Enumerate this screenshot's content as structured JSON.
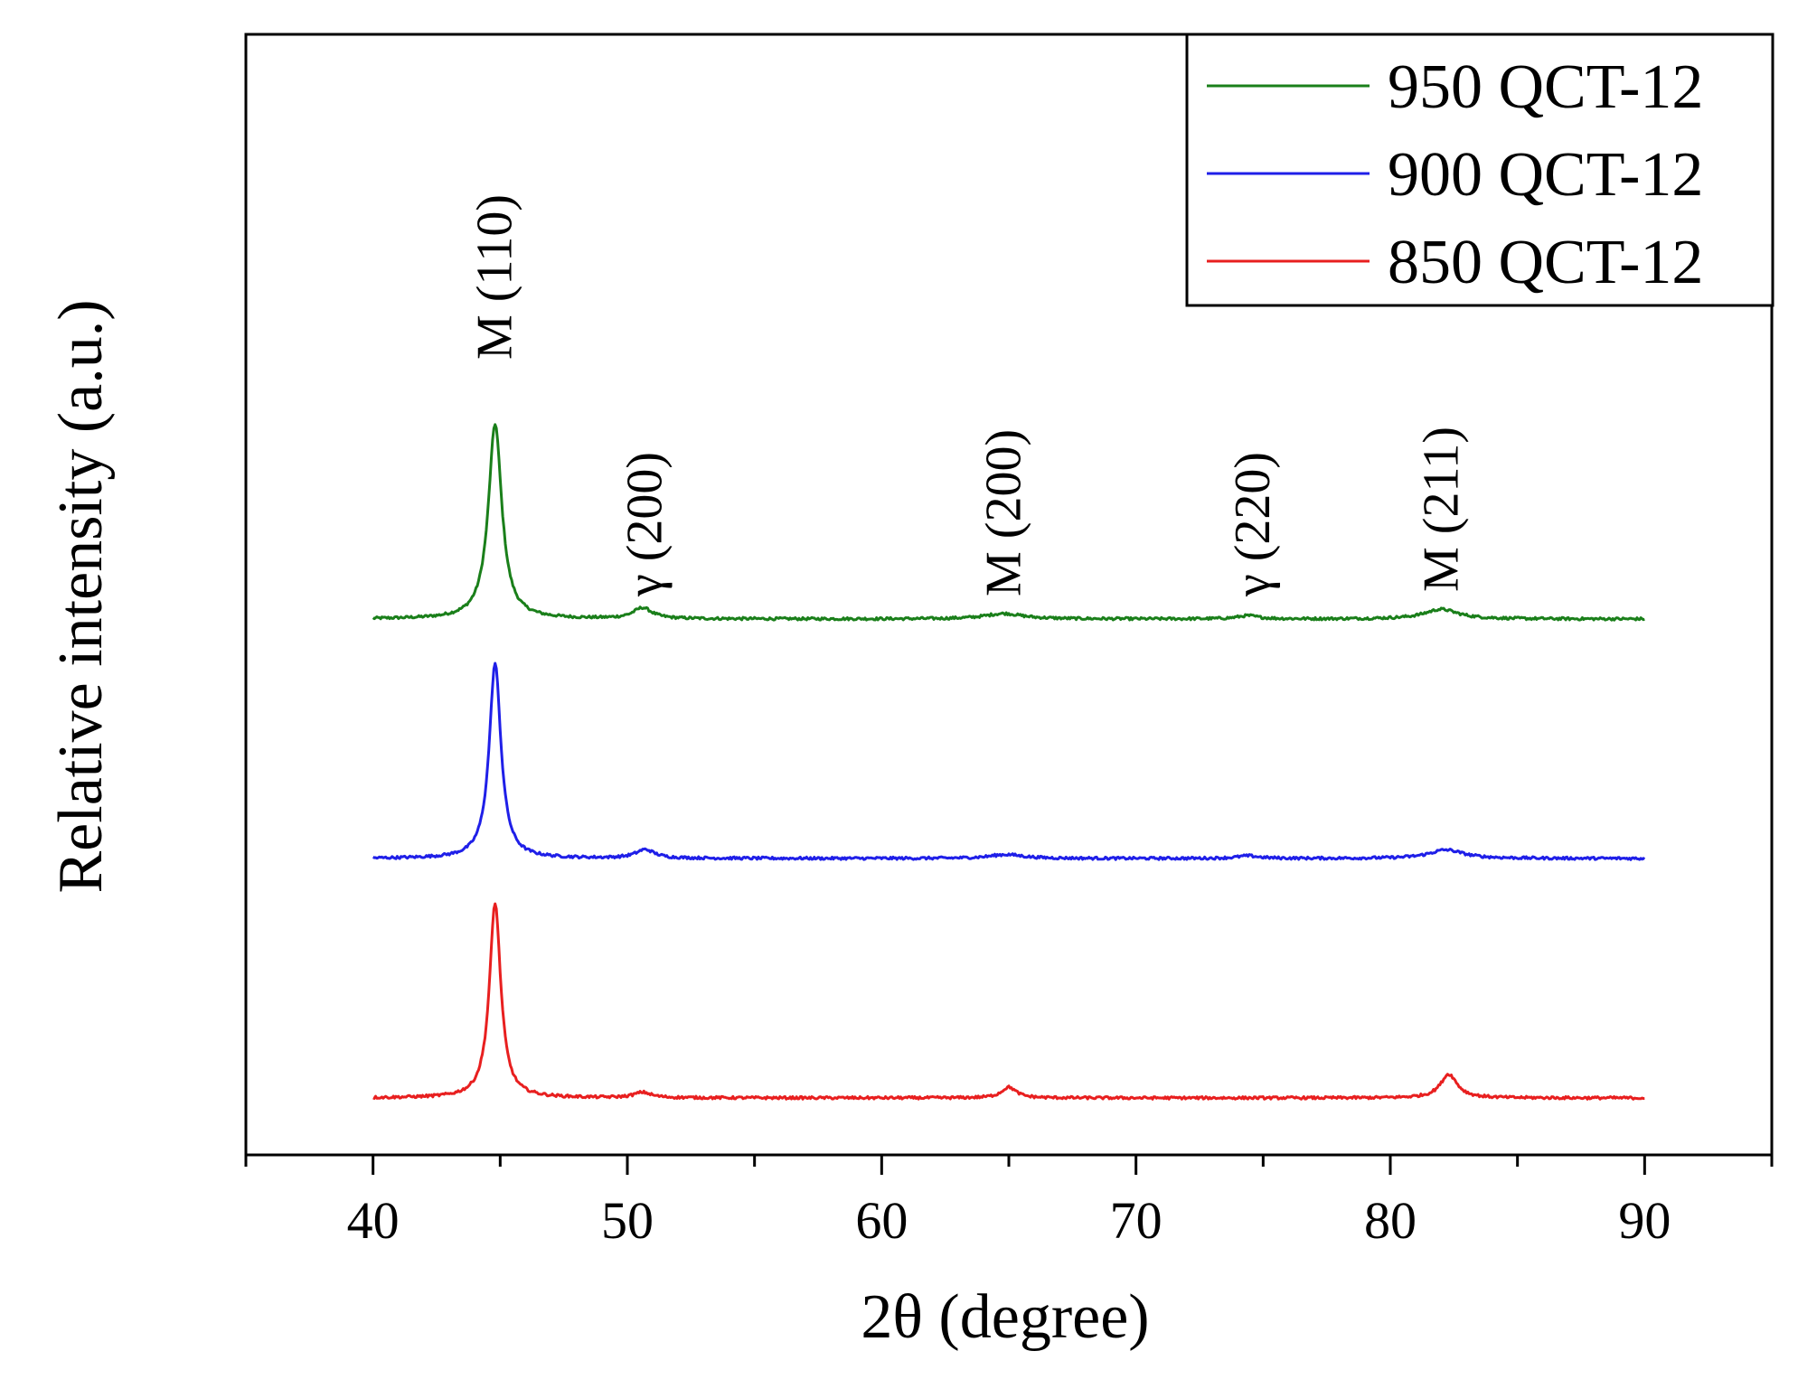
{
  "chart_data": {
    "type": "line",
    "title": "",
    "xlabel": "2θ (degree)",
    "ylabel": "Relative intensity (a.u.)",
    "xlim": [
      35,
      95
    ],
    "xticks": [
      "40",
      "50",
      "60",
      "70",
      "80",
      "90"
    ],
    "y_tick_labels_shown": false,
    "grid": false,
    "legend_position": "top-right",
    "series": [
      {
        "name": "950 QCT-12",
        "color": "#1a7f1a",
        "baseline": 2.0,
        "peaks": [
          {
            "x": 44.8,
            "height": 0.9,
            "width": 0.32
          },
          {
            "x": 50.6,
            "height": 0.05,
            "width": 0.45
          },
          {
            "x": 64.8,
            "height": 0.025,
            "width": 0.9
          },
          {
            "x": 74.4,
            "height": 0.015,
            "width": 0.5
          },
          {
            "x": 82.0,
            "height": 0.045,
            "width": 0.8
          }
        ]
      },
      {
        "name": "900 QCT-12",
        "color": "#1f1fe8",
        "baseline": 1.0,
        "peaks": [
          {
            "x": 44.8,
            "height": 0.9,
            "width": 0.28
          },
          {
            "x": 50.7,
            "height": 0.04,
            "width": 0.45
          },
          {
            "x": 64.9,
            "height": 0.018,
            "width": 0.8
          },
          {
            "x": 74.4,
            "height": 0.012,
            "width": 0.5
          },
          {
            "x": 82.2,
            "height": 0.04,
            "width": 0.8
          }
        ]
      },
      {
        "name": "850 QCT-12",
        "color": "#e81f1f",
        "baseline": 0.0,
        "peaks": [
          {
            "x": 44.8,
            "height": 0.9,
            "width": 0.27
          },
          {
            "x": 50.6,
            "height": 0.025,
            "width": 0.4
          },
          {
            "x": 65.0,
            "height": 0.05,
            "width": 0.35
          },
          {
            "x": 82.3,
            "height": 0.11,
            "width": 0.4
          }
        ]
      }
    ],
    "annotations": [
      {
        "text": "M (110)",
        "x": 44.8
      },
      {
        "text": "γ (200)",
        "x": 50.7
      },
      {
        "text": "M (200)",
        "x": 64.8
      },
      {
        "text": "γ (220)",
        "x": 74.6
      },
      {
        "text": "M (211)",
        "x": 82.0
      }
    ]
  }
}
